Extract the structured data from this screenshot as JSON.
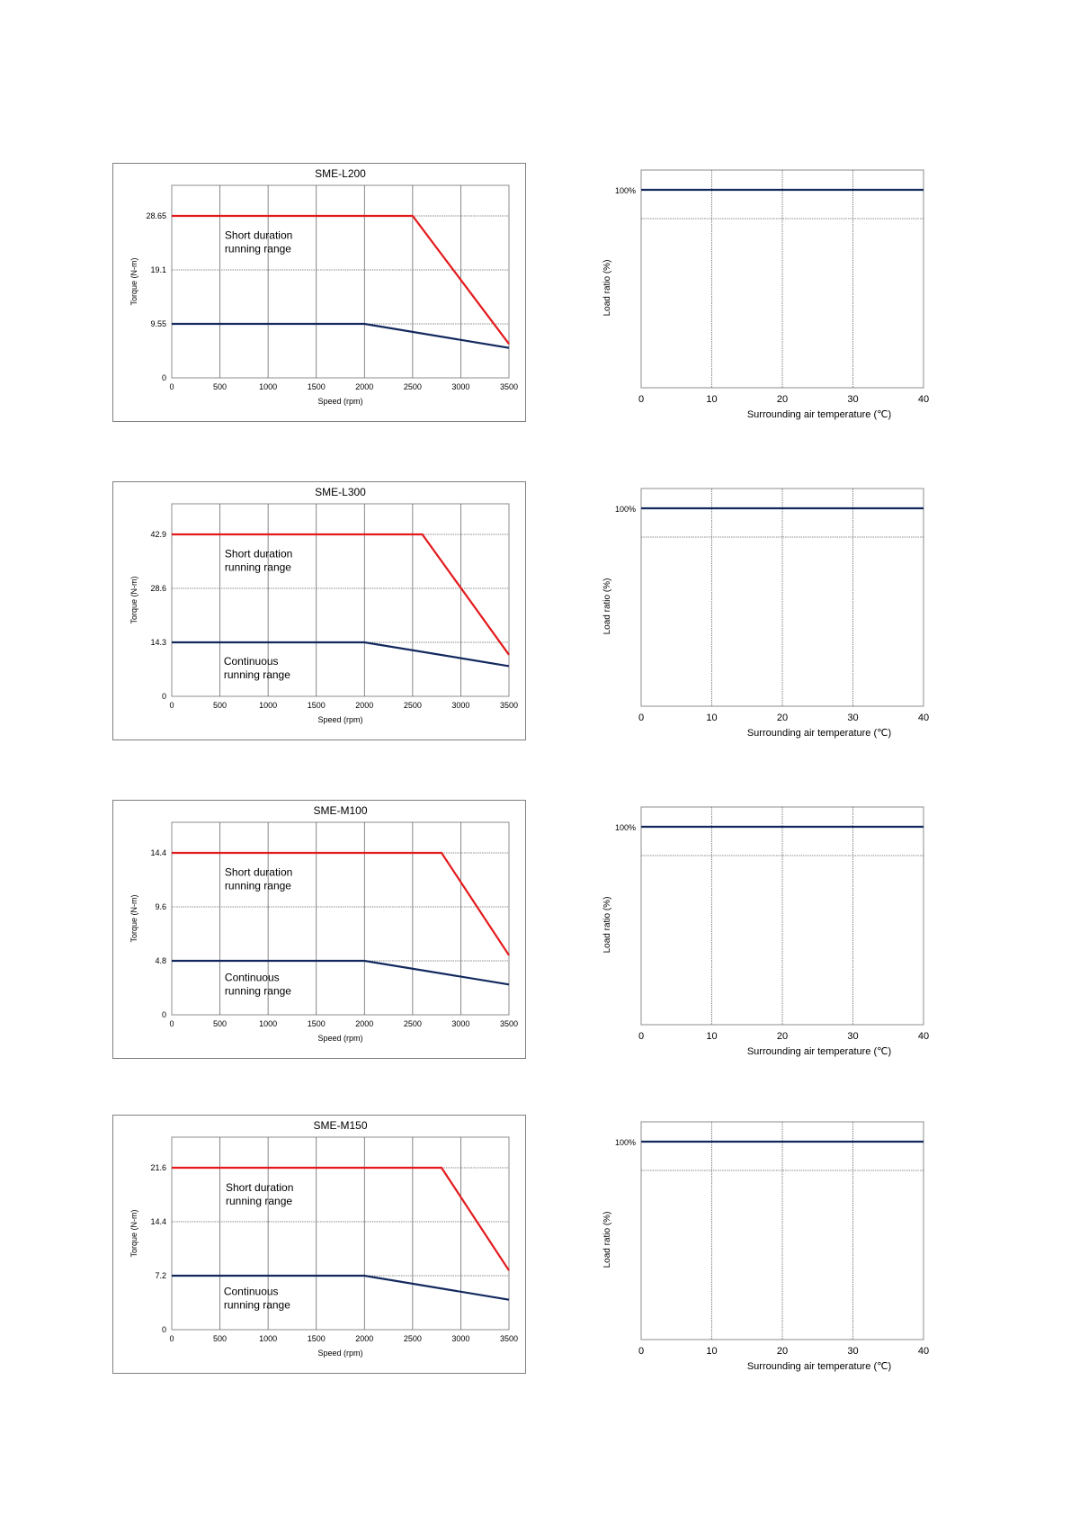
{
  "chart_data": [
    {
      "type": "line",
      "title": "SME-L200",
      "xlabel": "Speed (rpm)",
      "ylabel": "Torque (N-m)",
      "xlim": [
        0,
        3500
      ],
      "x_ticks": [
        "0",
        "500",
        "1000",
        "1500",
        "2000",
        "2500",
        "3000",
        "3500"
      ],
      "ylim": [
        0,
        28.65
      ],
      "y_ticks": [
        "0",
        "9.55",
        "19.1",
        "28.65"
      ],
      "grid": true,
      "annotations": [
        {
          "text": "Short duration\nrunning range",
          "x": 550,
          "y": 24.6
        },
        {
          "text": "",
          "x": 550,
          "y": 5.5
        }
      ],
      "series": [
        {
          "color": "#e31a1c",
          "x": [
            0,
            2500,
            3500
          ],
          "y": [
            28.65,
            28.65,
            6.0
          ]
        },
        {
          "color": "#13295e",
          "x": [
            0,
            2000,
            3500
          ],
          "y": [
            9.55,
            9.55,
            5.3
          ]
        }
      ]
    },
    {
      "type": "line",
      "title": "",
      "xlabel": "Surrounding air temperature (℃)",
      "ylabel": "Load ratio (%)",
      "xlim": [
        0,
        40
      ],
      "x_ticks": [
        "0",
        "10",
        "20",
        "30",
        "40"
      ],
      "ylim": [
        0,
        110
      ],
      "y_ticks": [
        "100%"
      ],
      "grid": true,
      "series": [
        {
          "color": "#13295e",
          "x": [
            0,
            40
          ],
          "y": [
            100,
            100
          ]
        }
      ]
    },
    {
      "type": "line",
      "title": "SME-L300",
      "xlabel": "Speed (rpm)",
      "ylabel": "Torque (N-m)",
      "xlim": [
        0,
        3500
      ],
      "x_ticks": [
        "0",
        "500",
        "1000",
        "1500",
        "2000",
        "2500",
        "3000",
        "3500"
      ],
      "ylim": [
        0,
        42.9
      ],
      "y_ticks": [
        "0",
        "14.3",
        "28.6",
        "42.9"
      ],
      "grid": true,
      "annotations": [
        {
          "text": "Short duration\nrunning range",
          "x": 550,
          "y": 36.8
        },
        {
          "text": "Continuous\nrunning range",
          "x": 540,
          "y": 8.3
        }
      ],
      "series": [
        {
          "color": "#e31a1c",
          "x": [
            0,
            2600,
            3500
          ],
          "y": [
            42.9,
            42.9,
            11.0
          ]
        },
        {
          "color": "#13295e",
          "x": [
            0,
            2000,
            3500
          ],
          "y": [
            14.3,
            14.3,
            8.0
          ]
        }
      ]
    },
    {
      "type": "line",
      "title": "",
      "xlabel": "Surrounding air temperature (℃)",
      "ylabel": "Load ratio (%)",
      "xlim": [
        0,
        40
      ],
      "x_ticks": [
        "0",
        "10",
        "20",
        "30",
        "40"
      ],
      "ylim": [
        0,
        110
      ],
      "y_ticks": [
        "100%"
      ],
      "grid": true,
      "series": [
        {
          "color": "#13295e",
          "x": [
            0,
            40
          ],
          "y": [
            100,
            100
          ]
        }
      ]
    },
    {
      "type": "line",
      "title": "SME-M100",
      "xlabel": "Speed (rpm)",
      "ylabel": "Torque (N-m)",
      "xlim": [
        0,
        3500
      ],
      "x_ticks": [
        "0",
        "500",
        "1000",
        "1500",
        "2000",
        "2500",
        "3000",
        "3500"
      ],
      "ylim": [
        0,
        14.4
      ],
      "y_ticks": [
        "0",
        "4.8",
        "9.6",
        "14.4"
      ],
      "grid": true,
      "annotations": [
        {
          "text": "Short duration\nrunning range",
          "x": 550,
          "y": 12.35
        },
        {
          "text": "Continuous\nrunning range",
          "x": 550,
          "y": 3.0
        }
      ],
      "series": [
        {
          "color": "#e31a1c",
          "x": [
            0,
            2800,
            3500
          ],
          "y": [
            14.4,
            14.4,
            5.3
          ]
        },
        {
          "color": "#13295e",
          "x": [
            0,
            2000,
            3500
          ],
          "y": [
            4.8,
            4.8,
            2.7
          ]
        }
      ]
    },
    {
      "type": "line",
      "title": "",
      "xlabel": "Surrounding air temperature (℃)",
      "ylabel": "Load ratio (%)",
      "xlim": [
        0,
        40
      ],
      "x_ticks": [
        "0",
        "10",
        "20",
        "30",
        "40"
      ],
      "ylim": [
        0,
        110
      ],
      "y_ticks": [
        "100%"
      ],
      "grid": true,
      "series": [
        {
          "color": "#13295e",
          "x": [
            0,
            40
          ],
          "y": [
            100,
            100
          ]
        }
      ]
    },
    {
      "type": "line",
      "title": "SME-M150",
      "xlabel": "Speed (rpm)",
      "ylabel": "Torque (N-m)",
      "xlim": [
        0,
        3500
      ],
      "x_ticks": [
        "0",
        "500",
        "1000",
        "1500",
        "2000",
        "2500",
        "3000",
        "3500"
      ],
      "ylim": [
        0,
        21.6
      ],
      "y_ticks": [
        "0",
        "7.2",
        "14.4",
        "21.6"
      ],
      "grid": true,
      "annotations": [
        {
          "text": "Short duration\nrunning range",
          "x": 560,
          "y": 18.5
        },
        {
          "text": "Continuous\nrunning range",
          "x": 540,
          "y": 4.6
        }
      ],
      "series": [
        {
          "color": "#e31a1c",
          "x": [
            0,
            2800,
            3500
          ],
          "y": [
            21.6,
            21.6,
            7.9
          ]
        },
        {
          "color": "#13295e",
          "x": [
            0,
            2000,
            3500
          ],
          "y": [
            7.2,
            7.2,
            4.0
          ]
        }
      ]
    },
    {
      "type": "line",
      "title": "",
      "xlabel": "Surrounding air temperature (℃)",
      "ylabel": "Load ratio (%)",
      "xlim": [
        0,
        40
      ],
      "x_ticks": [
        "0",
        "10",
        "20",
        "30",
        "40"
      ],
      "ylim": [
        0,
        110
      ],
      "y_ticks": [
        "100%"
      ],
      "grid": true,
      "series": [
        {
          "color": "#13295e",
          "x": [
            0,
            40
          ],
          "y": [
            100,
            100
          ]
        }
      ]
    }
  ]
}
